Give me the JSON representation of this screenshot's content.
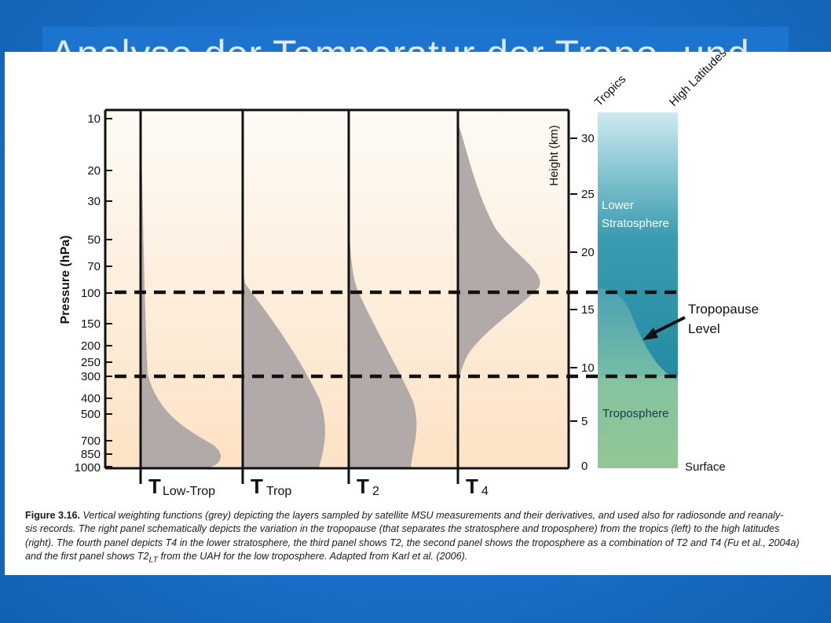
{
  "slide": {
    "title": "Analyse der Temperatur der Tropo- und"
  },
  "figure": {
    "pressure_axis": {
      "label": "Pressure (hPa)",
      "ticks": [
        "10",
        "20",
        "30",
        "50",
        "70",
        "100",
        "150",
        "200",
        "250",
        "300",
        "400",
        "500",
        "700",
        "850",
        "1000"
      ]
    },
    "height_axis": {
      "label": "Height (km)",
      "ticks": [
        "30",
        "25",
        "20",
        "15",
        "10",
        "5",
        "0"
      ]
    },
    "panels": [
      {
        "main": "T",
        "sub": "Low-Trop"
      },
      {
        "main": "T",
        "sub": "Trop"
      },
      {
        "main": "T",
        "sub": "2"
      },
      {
        "main": "T",
        "sub": "4"
      }
    ],
    "column_labels": {
      "left": "Tropics",
      "right": "High Latitudes"
    },
    "layers": {
      "stratosphere_line1": "Lower",
      "stratosphere_line2": "Stratosphere",
      "troposphere": "Troposphere",
      "surface": "Surface"
    },
    "annotation": {
      "line1": "Tropopause",
      "line2": "Level"
    },
    "colors": {
      "weighting_fill": "#b0a7a7",
      "stratosphere": "#1f8aa0",
      "troposphere": "#8fc79a",
      "background_top": "#fdfaf3",
      "background_bottom": "#fde4c8"
    }
  },
  "caption": {
    "label": "Figure 3.16.",
    "line1": "Vertical weighting functions (grey) depicting the layers sampled by satellite MSU measurements and their derivatives, and used also for radiosonde and reanaly-",
    "line2": "sis records. The right panel schematically depicts the variation in the tropopause (that separates the stratosphere and troposphere) from the tropics (left) to the high latitudes",
    "line3": "(right). The fourth panel depicts T4 in the lower stratosphere, the third panel shows T2, the second panel shows the troposphere as a combination of T2 and T4 (Fu et al., 2004a)",
    "line4a": "and the first panel shows T2",
    "line4sub": "LT",
    "line4b": " from the UAH for the low troposphere. Adapted from Karl et al. (2006)."
  }
}
